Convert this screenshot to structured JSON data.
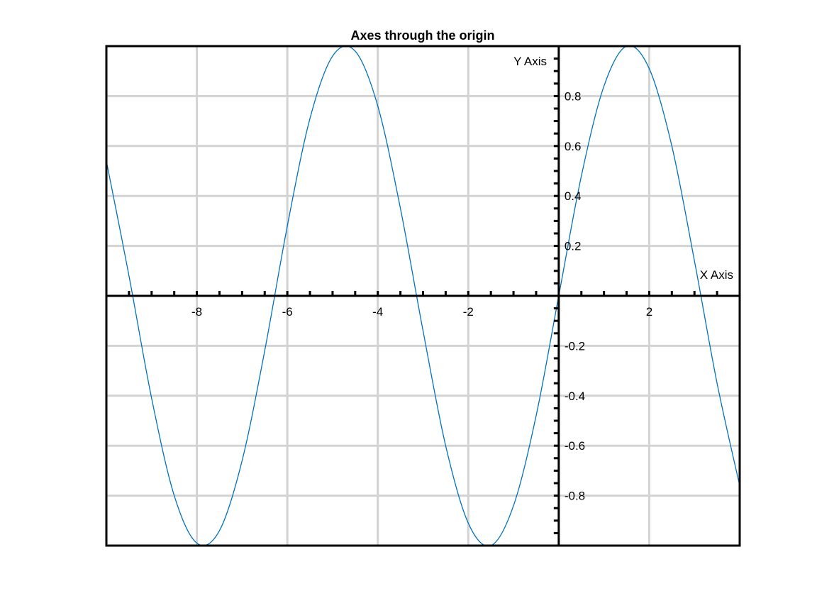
{
  "chart_data": {
    "type": "line",
    "title": "Axes through the origin",
    "xlabel": "X Axis",
    "ylabel": "Y Axis",
    "xlim": [
      -10.0,
      4.0
    ],
    "ylim": [
      -1.0,
      1.0
    ],
    "x_ticks": [
      -8,
      -6,
      -4,
      -2,
      2
    ],
    "x_tick_labels": [
      "-8",
      "-6",
      "-4",
      "-2",
      "2"
    ],
    "y_ticks": [
      0.8,
      0.6,
      0.4,
      0.2,
      -0.2,
      -0.4,
      -0.6,
      -0.8
    ],
    "y_tick_labels": [
      "0.8",
      "0.6",
      "0.4",
      "0.2",
      "-0.2",
      "-0.4",
      "-0.6",
      "-0.8"
    ],
    "x_minor_step": 0.5,
    "y_minor_step": 0.05,
    "grid": true,
    "axes_through_origin": true,
    "series": [
      {
        "color": "#0072BD",
        "x": [
          -10.0,
          -9.5,
          -9.0,
          -8.5,
          -8.0,
          -7.5,
          -7.0,
          -6.5,
          -6.0,
          -5.5,
          -5.0,
          -4.5,
          -4.0,
          -3.5,
          -3.0,
          -2.5,
          -2.0,
          -1.5,
          -1.0,
          -0.5,
          0.0,
          0.5,
          1.0,
          1.5,
          2.0,
          2.5,
          3.0,
          3.5,
          4.0
        ],
        "y": [
          0.54,
          0.08,
          -0.41,
          -0.8,
          -0.99,
          -0.94,
          -0.66,
          -0.22,
          0.28,
          0.71,
          0.96,
          0.98,
          0.76,
          0.35,
          -0.14,
          -0.6,
          -0.91,
          -1.0,
          -0.84,
          -0.48,
          0.0,
          0.48,
          0.84,
          1.0,
          0.91,
          0.6,
          0.14,
          -0.35,
          -0.76
        ]
      }
    ]
  }
}
